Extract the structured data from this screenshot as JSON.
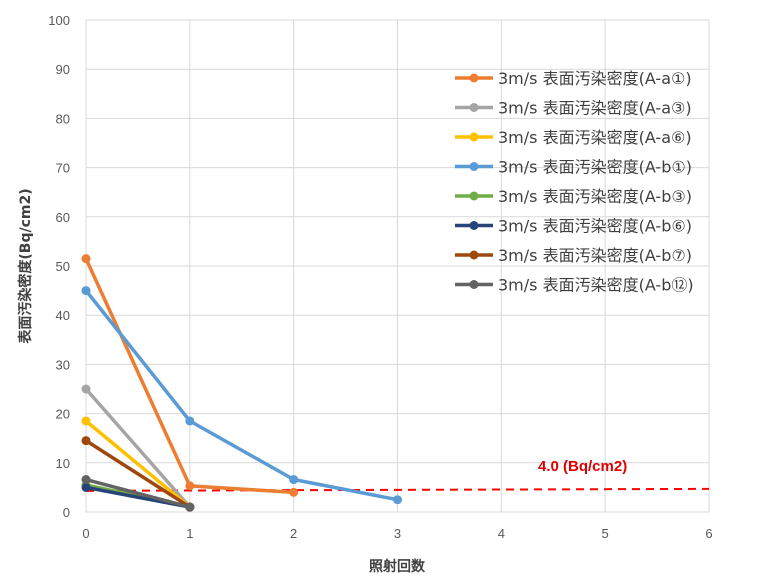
{
  "chart_data": {
    "type": "line",
    "xlabel": "照射回数",
    "ylabel": "表面汚染密度(Bq/cm2)",
    "xlim": [
      0,
      6
    ],
    "ylim": [
      0,
      100
    ],
    "x_ticks": [
      0,
      1,
      2,
      3,
      4,
      5,
      6
    ],
    "y_ticks": [
      0,
      10,
      20,
      30,
      40,
      50,
      60,
      70,
      80,
      90,
      100
    ],
    "grid": true,
    "legend_position": "right",
    "series": [
      {
        "name": "3m/s 表面汚染密度(A-a①)",
        "color": "#ED7D31",
        "x": [
          0,
          1,
          2
        ],
        "y": [
          51.5,
          5.3,
          4.0
        ]
      },
      {
        "name": "3m/s 表面汚染密度(A-a③)",
        "color": "#A5A5A5",
        "x": [
          0,
          1
        ],
        "y": [
          25.0,
          1.0
        ]
      },
      {
        "name": "3m/s 表面汚染密度(A-a⑥)",
        "color": "#FFC000",
        "x": [
          0,
          1
        ],
        "y": [
          18.5,
          1.0
        ]
      },
      {
        "name": "3m/s 表面汚染密度(A-b①)",
        "color": "#5B9BD5",
        "x": [
          0,
          1,
          2,
          3
        ],
        "y": [
          45.0,
          18.5,
          6.6,
          2.5
        ]
      },
      {
        "name": "3m/s 表面汚染密度(A-b③)",
        "color": "#70AD47",
        "x": [
          0,
          1
        ],
        "y": [
          5.5,
          1.0
        ]
      },
      {
        "name": "3m/s 表面汚染密度(A-b⑥)",
        "color": "#264478",
        "x": [
          0,
          1
        ],
        "y": [
          5.0,
          1.0
        ]
      },
      {
        "name": "3m/s 表面汚染密度(A-b⑦)",
        "color": "#9E480E",
        "x": [
          0,
          1
        ],
        "y": [
          14.5,
          1.0
        ]
      },
      {
        "name": "3m/s 表面汚染密度(A-b⑫)",
        "color": "#636363",
        "x": [
          0,
          1
        ],
        "y": [
          6.6,
          1.0
        ]
      }
    ],
    "reference_line": {
      "label": "4.0 (Bq/cm2)",
      "y_start": 4.3,
      "y_end": 4.7,
      "color": "#FF0000",
      "style": "dashed"
    }
  }
}
